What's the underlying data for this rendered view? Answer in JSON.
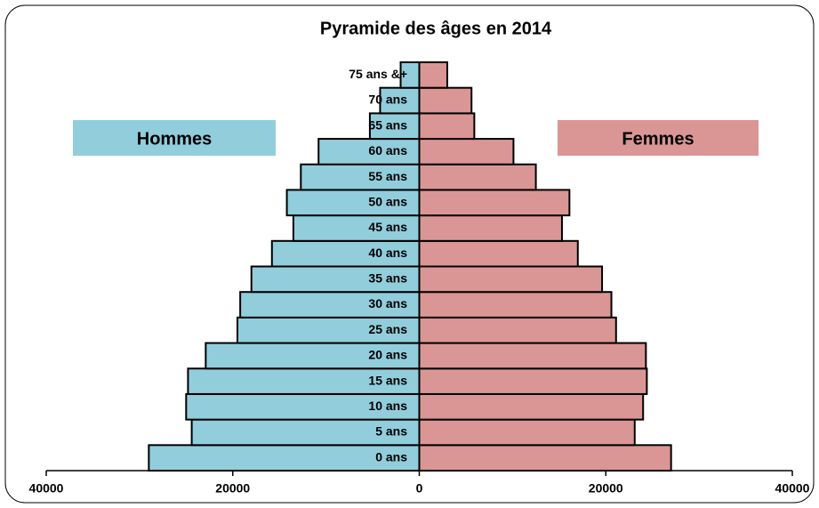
{
  "chart_data": {
    "type": "pyramid",
    "title": "Pyramide des âges en 2014",
    "categories": [
      "0 ans",
      "5 ans",
      "10 ans",
      "15 ans",
      "20 ans",
      "25 ans",
      "30 ans",
      "35 ans",
      "40 ans",
      "45 ans",
      "50 ans",
      "55 ans",
      "60 ans",
      "65 ans",
      "70 ans",
      "75 ans &+"
    ],
    "series": [
      {
        "name": "Hommes",
        "color": "#92cddc",
        "values": [
          29000,
          24400,
          25000,
          24800,
          22900,
          19500,
          19200,
          18000,
          15800,
          13500,
          14200,
          12700,
          10800,
          5300,
          4200,
          2000
        ]
      },
      {
        "name": "Femmes",
        "color": "#da9694",
        "values": [
          27000,
          23100,
          24000,
          24400,
          24300,
          21100,
          20600,
          19600,
          17000,
          15300,
          16100,
          12500,
          10100,
          5900,
          5600,
          3000
        ]
      }
    ],
    "xlim": [
      -40000,
      40000
    ],
    "xticks": [
      {
        "value": -40000,
        "label": "40000"
      },
      {
        "value": -20000,
        "label": "20000"
      },
      0,
      20000,
      40000
    ]
  }
}
